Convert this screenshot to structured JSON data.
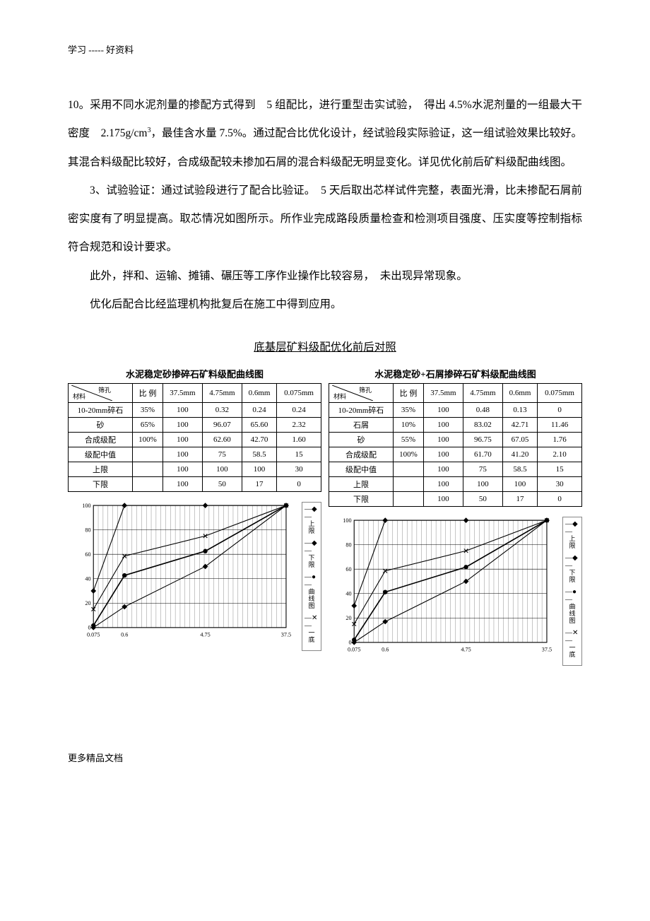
{
  "header_note": "学习 ----- 好资料",
  "footer_note": "更多精品文档",
  "paragraphs": {
    "p1": "10。采用不同水泥剂量的掺配方式得到　5 组配比，进行重型击实试验，　得出 4.5%水泥剂量的一组最大干密度　2.175g/cm",
    "p1_sup": "3",
    "p1b": "，最佳含水量 7.5%。通过配合比优化设计，经试验段实际验证，这一组试验效果比较好。其混合料级配比较好，合成级配较未掺加石屑的混合料级配无明显变化。详见优化前后矿料级配曲线图。",
    "p2": "3、试验验证：通过试验段进行了配合比验证。　5 天后取出芯样试件完整，表面光滑，比未掺配石屑前密实度有了明显提高。取芯情况如图所示。所作业完成路段质量检查和检测项目强度、压实度等控制指标符合规范和设计要求。",
    "p3": "此外，拌和、运输、摊铺、碾压等工序作业操作比较容易，　未出现异常现象。",
    "p4": "优化后配合比经监理机构批复后在施工中得到应用。"
  },
  "section_title": "底基层矿料级配优化前后对照",
  "table_header": {
    "diag_top": "筛孔",
    "diag_bot": "材料",
    "cols": [
      "比 例",
      "37.5mm",
      "4.75mm",
      "0.6mm",
      "0.075mm"
    ]
  },
  "chart_left": {
    "title": "水泥稳定砂掺碎石矿料级配曲线图",
    "rows": [
      {
        "label": "10-20mm碎石",
        "vals": [
          "35%",
          "100",
          "0.32",
          "0.24",
          "0.24"
        ]
      },
      {
        "label": "砂",
        "vals": [
          "65%",
          "100",
          "96.07",
          "65.60",
          "2.32"
        ]
      },
      {
        "label": "合成级配",
        "vals": [
          "100%",
          "100",
          "62.60",
          "42.70",
          "1.60"
        ]
      },
      {
        "label": "级配中值",
        "vals": [
          "",
          "100",
          "75",
          "58.5",
          "15"
        ]
      },
      {
        "label": "上限",
        "vals": [
          "",
          "100",
          "100",
          "100",
          "30"
        ]
      },
      {
        "label": "下限",
        "vals": [
          "",
          "100",
          "50",
          "17",
          "0"
        ]
      }
    ]
  },
  "chart_right": {
    "title": "水泥稳定砂+石屑掺碎石矿料级配曲线图",
    "rows": [
      {
        "label": "10-20mm碎石",
        "vals": [
          "35%",
          "100",
          "0.48",
          "0.13",
          "0"
        ]
      },
      {
        "label": "石屑",
        "vals": [
          "10%",
          "100",
          "83.02",
          "42.71",
          "11.46"
        ]
      },
      {
        "label": "砂",
        "vals": [
          "55%",
          "100",
          "96.75",
          "67.05",
          "1.76"
        ]
      },
      {
        "label": "合成级配",
        "vals": [
          "100%",
          "100",
          "61.70",
          "41.20",
          "2.10"
        ]
      },
      {
        "label": "级配中值",
        "vals": [
          "",
          "100",
          "75",
          "58.5",
          "15"
        ]
      },
      {
        "label": "上限",
        "vals": [
          "",
          "100",
          "100",
          "100",
          "30"
        ]
      },
      {
        "label": "下限",
        "vals": [
          "",
          "100",
          "50",
          "17",
          "0"
        ]
      }
    ]
  },
  "chart_common": {
    "ylim": [
      0,
      100
    ],
    "ytick_step": 20,
    "x_positions": [
      0,
      50,
      180,
      310
    ],
    "x_labels": [
      "0.075",
      "0.6",
      "4.75",
      "37.5"
    ],
    "grid_color": "#000000",
    "series_color": "#000000",
    "background": "#ffffff",
    "legend": [
      "上限",
      "下限",
      "曲线图",
      "一底"
    ]
  },
  "chart_left_series": {
    "upper": [
      30,
      100,
      100,
      100
    ],
    "lower": [
      0,
      17,
      50,
      100
    ],
    "curve": [
      1.6,
      42.7,
      62.6,
      100
    ],
    "mid": [
      15,
      58.5,
      75,
      100
    ]
  },
  "chart_right_series": {
    "upper": [
      30,
      100,
      100,
      100
    ],
    "lower": [
      0,
      17,
      50,
      100
    ],
    "curve": [
      2.1,
      41.2,
      61.7,
      100
    ],
    "mid": [
      15,
      58.5,
      75,
      100
    ]
  }
}
